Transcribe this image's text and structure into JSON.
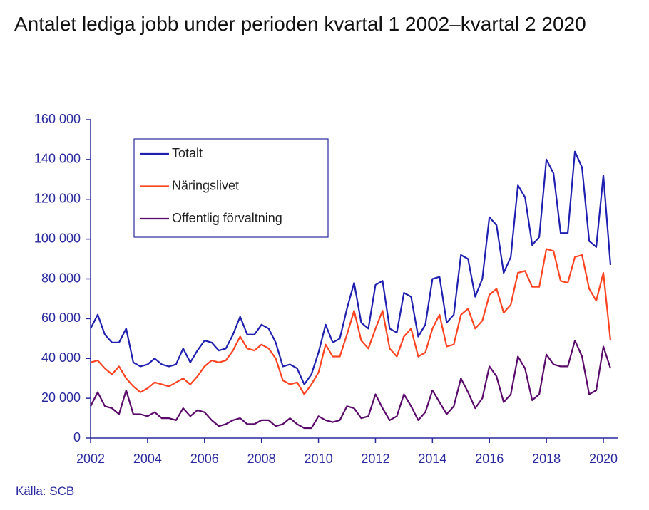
{
  "chart_data": {
    "type": "line",
    "title": "Antalet lediga jobb under perioden kvartal 1 2002–kvartal 2 2020",
    "source": "Källa: SCB",
    "x": [
      2002,
      2002.25,
      2002.5,
      2002.75,
      2003,
      2003.25,
      2003.5,
      2003.75,
      2004,
      2004.25,
      2004.5,
      2004.75,
      2005,
      2005.25,
      2005.5,
      2005.75,
      2006,
      2006.25,
      2006.5,
      2006.75,
      2007,
      2007.25,
      2007.5,
      2007.75,
      2008,
      2008.25,
      2008.5,
      2008.75,
      2009,
      2009.25,
      2009.5,
      2009.75,
      2010,
      2010.25,
      2010.5,
      2010.75,
      2011,
      2011.25,
      2011.5,
      2011.75,
      2012,
      2012.25,
      2012.5,
      2012.75,
      2013,
      2013.25,
      2013.5,
      2013.75,
      2014,
      2014.25,
      2014.5,
      2014.75,
      2015,
      2015.25,
      2015.5,
      2015.75,
      2016,
      2016.25,
      2016.5,
      2016.75,
      2017,
      2017.25,
      2017.5,
      2017.75,
      2018,
      2018.25,
      2018.5,
      2018.75,
      2019,
      2019.25,
      2019.5,
      2019.75,
      2020,
      2020.25
    ],
    "series": [
      {
        "name": "Totalt",
        "color": "#2020b0",
        "values": [
          55000,
          62000,
          52000,
          48000,
          48000,
          55000,
          38000,
          36000,
          37000,
          40000,
          37000,
          36000,
          37000,
          45000,
          38000,
          44000,
          49000,
          48000,
          44000,
          45000,
          52000,
          61000,
          52000,
          52000,
          57000,
          55000,
          48000,
          36000,
          37000,
          35000,
          27000,
          32000,
          43000,
          57000,
          48000,
          50000,
          65000,
          78000,
          58000,
          55000,
          77000,
          79000,
          55000,
          53000,
          73000,
          71000,
          51000,
          57000,
          80000,
          81000,
          58000,
          62000,
          92000,
          90000,
          71000,
          80000,
          111000,
          107000,
          83000,
          91000,
          127000,
          121000,
          97000,
          101000,
          140000,
          133000,
          103000,
          103000,
          144000,
          136000,
          99000,
          96000,
          132000,
          87000
        ]
      },
      {
        "name": "Näringslivet",
        "color": "#ff4422",
        "values": [
          38000,
          39000,
          35000,
          32000,
          36000,
          30000,
          26000,
          23000,
          25000,
          28000,
          27000,
          26000,
          28000,
          30000,
          27000,
          31000,
          36000,
          39000,
          38000,
          39000,
          44000,
          51000,
          45000,
          44000,
          47000,
          45000,
          40000,
          29000,
          27000,
          28000,
          22000,
          27000,
          33000,
          47000,
          41000,
          41000,
          52000,
          64000,
          49000,
          45000,
          55000,
          64000,
          45000,
          41000,
          51000,
          55000,
          41000,
          43000,
          55000,
          62000,
          46000,
          47000,
          62000,
          65000,
          55000,
          59000,
          72000,
          75000,
          63000,
          67000,
          83000,
          84000,
          76000,
          76000,
          95000,
          94000,
          79000,
          78000,
          91000,
          92000,
          75000,
          69000,
          83000,
          49000
        ]
      },
      {
        "name": "Offentlig förvaltning",
        "color": "#5a0a6a",
        "values": [
          16000,
          23000,
          16000,
          15000,
          12000,
          24000,
          12000,
          12000,
          11000,
          13000,
          10000,
          10000,
          9000,
          15000,
          11000,
          14000,
          13000,
          9000,
          6000,
          7000,
          9000,
          10000,
          7000,
          7000,
          9000,
          9000,
          6000,
          7000,
          10000,
          7000,
          5000,
          5000,
          11000,
          9000,
          8000,
          9000,
          16000,
          15000,
          10000,
          11000,
          22000,
          15000,
          9000,
          11000,
          22000,
          16000,
          9000,
          13000,
          24000,
          18000,
          12000,
          16000,
          30000,
          23000,
          15000,
          20000,
          36000,
          31000,
          18000,
          22000,
          41000,
          35000,
          19000,
          22000,
          42000,
          37000,
          36000,
          36000,
          49000,
          41000,
          22000,
          24000,
          46000,
          35000
        ]
      }
    ],
    "xlim": [
      2002,
      2020.5
    ],
    "xticks": [
      2002,
      2004,
      2006,
      2008,
      2010,
      2012,
      2014,
      2016,
      2018,
      2020
    ],
    "ylim": [
      0,
      160000
    ],
    "yticks": [
      0,
      {
        "value": 20000,
        "label": "20 000"
      },
      {
        "value": 40000,
        "label": "40 000"
      },
      {
        "value": 60000,
        "label": "60 000"
      },
      {
        "value": 80000,
        "label": "80 000"
      },
      {
        "value": 100000,
        "label": "100 000"
      },
      {
        "value": 120000,
        "label": "120 000"
      },
      {
        "value": 140000,
        "label": "140 000"
      },
      {
        "value": 160000,
        "label": "160 000"
      }
    ],
    "legend": "upper left"
  }
}
